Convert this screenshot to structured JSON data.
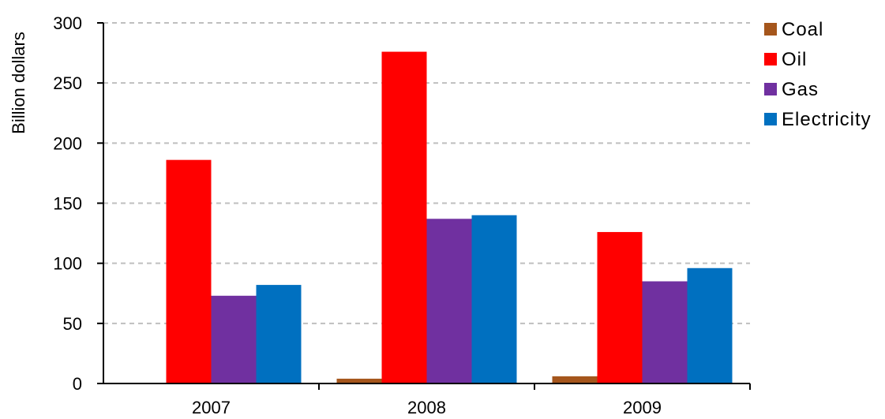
{
  "chart_data": {
    "type": "bar",
    "title": "",
    "xlabel": "",
    "ylabel": "Billion dollars",
    "ylim": [
      0,
      300
    ],
    "yticks": [
      "0",
      "50",
      "100",
      "150",
      "200",
      "250",
      "300"
    ],
    "grid": true,
    "legend_position": "right",
    "categories": [
      "2007",
      "2008",
      "2009"
    ],
    "series": [
      {
        "name": "Coal",
        "color": "#a5561c",
        "values": [
          0,
          4,
          6
        ]
      },
      {
        "name": "Oil",
        "color": "#ff0000",
        "values": [
          186,
          276,
          126
        ]
      },
      {
        "name": "Gas",
        "color": "#7030a0",
        "values": [
          73,
          137,
          85
        ]
      },
      {
        "name": "Electricity",
        "color": "#0070c0",
        "values": [
          82,
          140,
          96
        ]
      }
    ]
  }
}
